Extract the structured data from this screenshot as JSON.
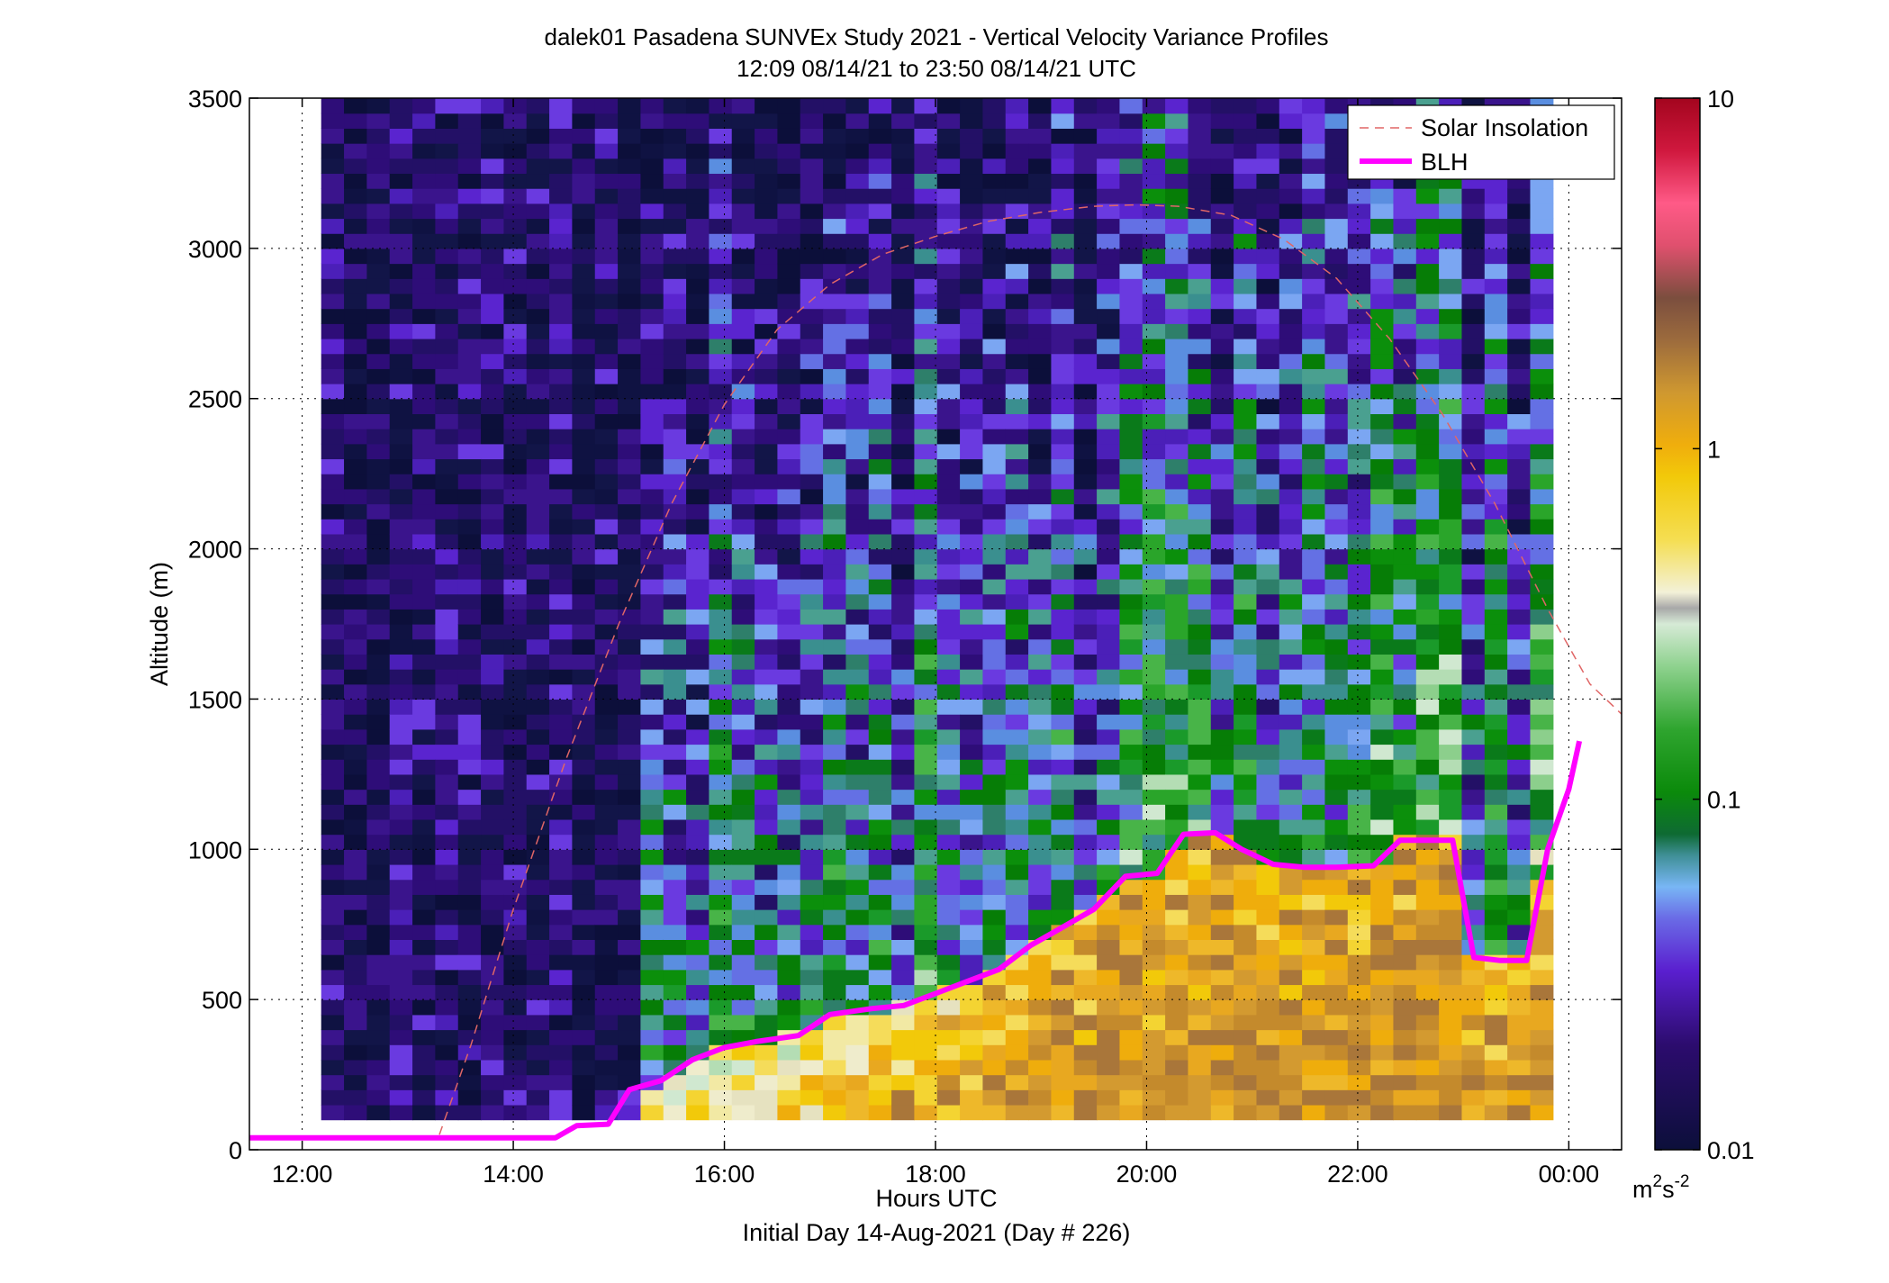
{
  "chart_data": {
    "type": "heatmap",
    "title": "dalek01 Pasadena SUNVEx Study 2021 - Vertical Velocity Variance Profiles",
    "subtitle": "12:09 08/14/21 to 23:50 08/14/21  UTC",
    "xlabel": "Hours UTC",
    "xlabel2": "Initial Day 14-Aug-2021 (Day # 226)",
    "ylabel": "Altitude (m)",
    "xlim": [
      11.5,
      24.5
    ],
    "ylim": [
      0,
      3500
    ],
    "x_ticks": [
      12,
      14,
      16,
      18,
      20,
      22,
      24
    ],
    "x_tick_labels": [
      "12:00",
      "14:00",
      "16:00",
      "18:00",
      "20:00",
      "22:00",
      "00:00"
    ],
    "y_ticks": [
      0,
      500,
      1000,
      1500,
      2000,
      2500,
      3000,
      3500
    ],
    "y_tick_labels": [
      "0",
      "500",
      "1000",
      "1500",
      "2000",
      "2500",
      "3000",
      "3500"
    ],
    "grid": true,
    "legend_position": "top-right",
    "colorbar": {
      "scale": "log",
      "range": [
        0.01,
        10
      ],
      "tick_values": [
        0.01,
        0.1,
        1,
        10
      ],
      "tick_labels": [
        "0.01",
        "0.1",
        "1",
        "10"
      ],
      "unit_base": "m",
      "unit_sup1": "2",
      "unit_mid": "s",
      "unit_sup2": "-2"
    },
    "heatmap": {
      "x_start_hour": 12.18,
      "x_end_hour": 23.85,
      "y_start_m": 100,
      "y_end_m": 3500,
      "columns": 54,
      "rows": 68
    },
    "series": [
      {
        "name": "Solar Insolation",
        "style": "dashed",
        "color": "#e06666",
        "x_hours": [
          13.3,
          13.6,
          14.0,
          14.5,
          15.0,
          15.5,
          16.0,
          16.5,
          17.0,
          17.5,
          18.0,
          18.5,
          19.0,
          19.5,
          19.9,
          20.3,
          20.8,
          21.3,
          21.8,
          22.3,
          22.8,
          23.3,
          23.8,
          24.2,
          24.5
        ],
        "y_m": [
          50,
          350,
          800,
          1300,
          1750,
          2150,
          2480,
          2730,
          2880,
          2980,
          3040,
          3090,
          3120,
          3140,
          3145,
          3140,
          3110,
          3030,
          2900,
          2700,
          2450,
          2150,
          1800,
          1550,
          1450
        ]
      },
      {
        "name": "BLH",
        "style": "solid",
        "color": "#ff00ff",
        "x_hours": [
          11.5,
          14.4,
          14.6,
          14.9,
          15.1,
          15.4,
          15.7,
          16.0,
          16.3,
          16.7,
          17.0,
          17.4,
          17.7,
          18.0,
          18.3,
          18.6,
          18.9,
          19.2,
          19.5,
          19.8,
          20.1,
          20.35,
          20.65,
          20.9,
          21.2,
          21.5,
          21.8,
          22.15,
          22.4,
          22.6,
          22.9,
          23.1,
          23.35,
          23.6,
          23.8,
          24.0,
          24.1
        ],
        "y_m": [
          40,
          40,
          80,
          85,
          200,
          230,
          300,
          340,
          360,
          380,
          450,
          470,
          480,
          520,
          560,
          600,
          680,
          740,
          800,
          910,
          920,
          1050,
          1055,
          1000,
          950,
          940,
          940,
          945,
          1030,
          1030,
          1030,
          640,
          630,
          630,
          1000,
          1200,
          1360
        ]
      }
    ]
  }
}
